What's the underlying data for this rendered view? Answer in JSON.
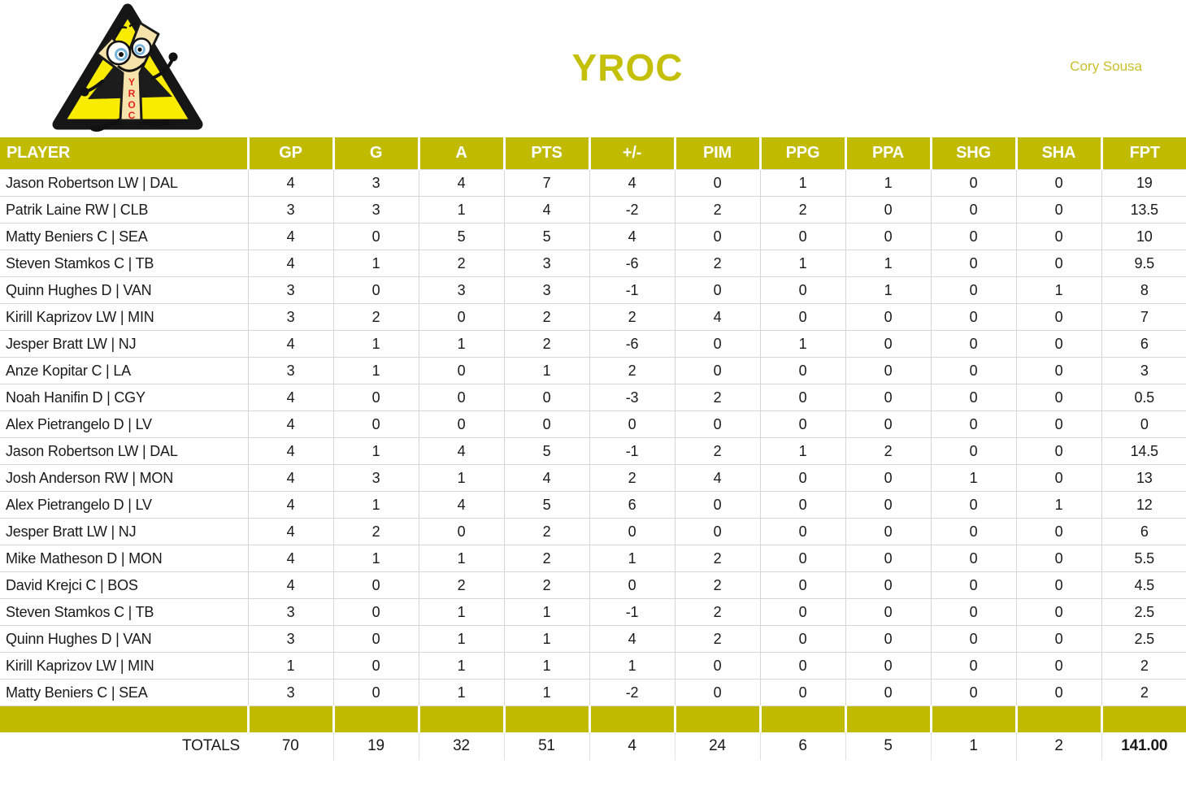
{
  "header": {
    "title": "YROC",
    "author": "Cory Sousa",
    "logo": "yroc-mascot-warning-triangle"
  },
  "colors": {
    "accent_olive": "#c0bb00",
    "title_text": "#c4bf07",
    "author_text": "#c9bf29",
    "logo_triangle_fill": "#f9ec00",
    "logo_outline": "#161616",
    "logo_letters_red": "#e2231a",
    "grid_line": "#d6d6d6",
    "body_text": "#1a1a1a",
    "header_text": "#ffffff"
  },
  "table": {
    "columns": [
      "PLAYER",
      "GP",
      "G",
      "A",
      "PTS",
      "+/-",
      "PIM",
      "PPG",
      "PPA",
      "SHG",
      "SHA",
      "FPT"
    ],
    "rows": [
      {
        "player": "Jason Robertson LW | DAL",
        "stats": [
          4,
          3,
          4,
          7,
          4,
          0,
          1,
          1,
          0,
          0,
          19
        ]
      },
      {
        "player": "Patrik Laine RW | CLB",
        "stats": [
          3,
          3,
          1,
          4,
          -2,
          2,
          2,
          0,
          0,
          0,
          13.5
        ]
      },
      {
        "player": "Matty Beniers C | SEA",
        "stats": [
          4,
          0,
          5,
          5,
          4,
          0,
          0,
          0,
          0,
          0,
          10
        ]
      },
      {
        "player": "Steven Stamkos C | TB",
        "stats": [
          4,
          1,
          2,
          3,
          -6,
          2,
          1,
          1,
          0,
          0,
          9.5
        ]
      },
      {
        "player": "Quinn Hughes D | VAN",
        "stats": [
          3,
          0,
          3,
          3,
          -1,
          0,
          0,
          1,
          0,
          1,
          8
        ]
      },
      {
        "player": "Kirill Kaprizov LW | MIN",
        "stats": [
          3,
          2,
          0,
          2,
          2,
          4,
          0,
          0,
          0,
          0,
          7
        ]
      },
      {
        "player": "Jesper Bratt LW | NJ",
        "stats": [
          4,
          1,
          1,
          2,
          -6,
          0,
          1,
          0,
          0,
          0,
          6
        ]
      },
      {
        "player": "Anze Kopitar C | LA",
        "stats": [
          3,
          1,
          0,
          1,
          2,
          0,
          0,
          0,
          0,
          0,
          3
        ]
      },
      {
        "player": "Noah Hanifin D | CGY",
        "stats": [
          4,
          0,
          0,
          0,
          -3,
          2,
          0,
          0,
          0,
          0,
          0.5
        ]
      },
      {
        "player": "Alex Pietrangelo D | LV",
        "stats": [
          4,
          0,
          0,
          0,
          0,
          0,
          0,
          0,
          0,
          0,
          0
        ]
      },
      {
        "player": "Jason Robertson LW | DAL",
        "stats": [
          4,
          1,
          4,
          5,
          -1,
          2,
          1,
          2,
          0,
          0,
          14.5
        ]
      },
      {
        "player": "Josh Anderson RW | MON",
        "stats": [
          4,
          3,
          1,
          4,
          2,
          4,
          0,
          0,
          1,
          0,
          13
        ]
      },
      {
        "player": "Alex Pietrangelo D | LV",
        "stats": [
          4,
          1,
          4,
          5,
          6,
          0,
          0,
          0,
          0,
          1,
          12
        ]
      },
      {
        "player": "Jesper Bratt LW | NJ",
        "stats": [
          4,
          2,
          0,
          2,
          0,
          0,
          0,
          0,
          0,
          0,
          6
        ]
      },
      {
        "player": "Mike Matheson D | MON",
        "stats": [
          4,
          1,
          1,
          2,
          1,
          2,
          0,
          0,
          0,
          0,
          5.5
        ]
      },
      {
        "player": "David Krejci C | BOS",
        "stats": [
          4,
          0,
          2,
          2,
          0,
          2,
          0,
          0,
          0,
          0,
          4.5
        ]
      },
      {
        "player": "Steven Stamkos C | TB",
        "stats": [
          3,
          0,
          1,
          1,
          -1,
          2,
          0,
          0,
          0,
          0,
          2.5
        ]
      },
      {
        "player": "Quinn Hughes D | VAN",
        "stats": [
          3,
          0,
          1,
          1,
          4,
          2,
          0,
          0,
          0,
          0,
          2.5
        ]
      },
      {
        "player": "Kirill Kaprizov LW | MIN",
        "stats": [
          1,
          0,
          1,
          1,
          1,
          0,
          0,
          0,
          0,
          0,
          2
        ]
      },
      {
        "player": "Matty Beniers C | SEA",
        "stats": [
          3,
          0,
          1,
          1,
          -2,
          0,
          0,
          0,
          0,
          0,
          2
        ]
      }
    ],
    "totals_label": "TOTALS",
    "totals": [
      70,
      19,
      32,
      51,
      4,
      24,
      6,
      5,
      1,
      2,
      "141.00"
    ]
  }
}
